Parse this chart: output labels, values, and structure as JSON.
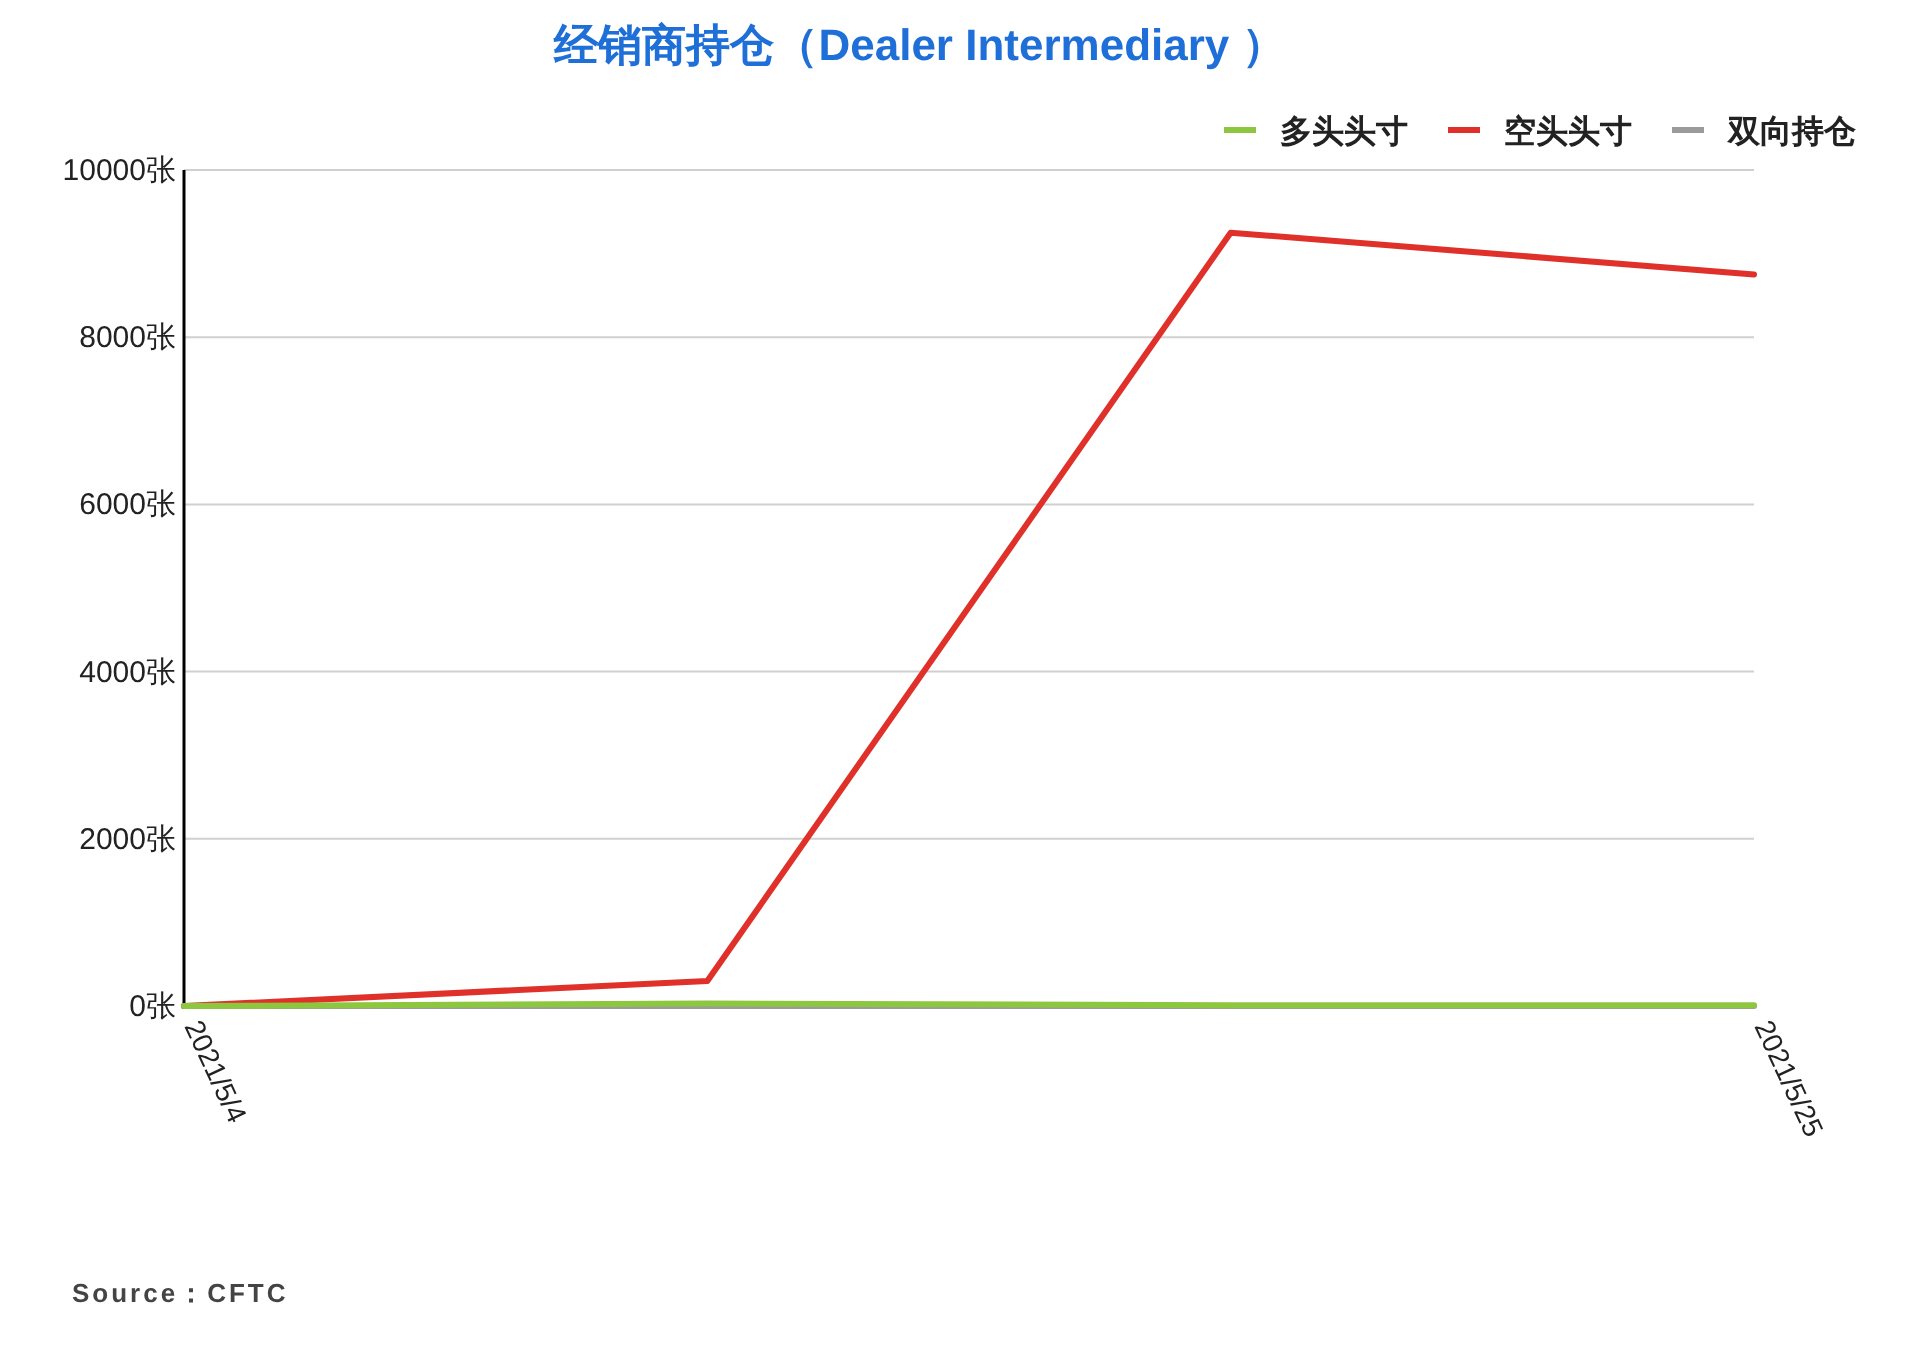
{
  "chart_data": {
    "type": "line",
    "title": "经销商持仓（Dealer Intermediary ）",
    "categories": [
      "2021/5/4",
      null,
      null,
      "2021/5/25"
    ],
    "series": [
      {
        "name": "多头头寸",
        "color": "#8dc63f",
        "values": [
          0,
          30,
          10,
          10
        ]
      },
      {
        "name": "空头头寸",
        "color": "#e0302a",
        "values": [
          0,
          300,
          9250,
          8750
        ]
      },
      {
        "name": "双向持仓",
        "color": "#9b9b9b",
        "values": [
          0,
          0,
          0,
          0
        ]
      }
    ],
    "ylim": [
      0,
      10000
    ],
    "yticks": [
      {
        "value": 0,
        "label": "0张"
      },
      {
        "value": 2000,
        "label": "2000张"
      },
      {
        "value": 4000,
        "label": "4000张"
      },
      {
        "value": 6000,
        "label": "6000张"
      },
      {
        "value": 8000,
        "label": "8000张"
      },
      {
        "value": 10000,
        "label": "10000张"
      }
    ],
    "grid": "y",
    "legend": "top right",
    "marker": "none",
    "line_style": "solid",
    "annotations": [
      "Source：CFTC"
    ]
  }
}
